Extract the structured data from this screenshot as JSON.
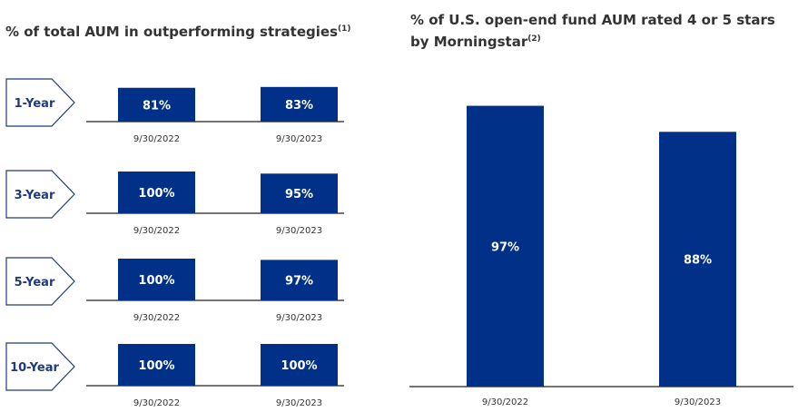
{
  "chart_data": [
    {
      "type": "bar",
      "title": "% of total AUM in outperforming strategies",
      "title_footnote": "(1)",
      "panels": [
        {
          "label": "1-Year",
          "categories": [
            "9/30/2022",
            "9/30/2023"
          ],
          "values": [
            81,
            83
          ],
          "labels": [
            "81%",
            "83%"
          ]
        },
        {
          "label": "3-Year",
          "categories": [
            "9/30/2022",
            "9/30/2023"
          ],
          "values": [
            100,
            95
          ],
          "labels": [
            "100%",
            "95%"
          ]
        },
        {
          "label": "5-Year",
          "categories": [
            "9/30/2022",
            "9/30/2023"
          ],
          "values": [
            100,
            97
          ],
          "labels": [
            "100%",
            "97%"
          ]
        },
        {
          "label": "10-Year",
          "categories": [
            "9/30/2022",
            "9/30/2023"
          ],
          "values": [
            100,
            100
          ],
          "labels": [
            "100%",
            "100%"
          ]
        }
      ],
      "ylim": [
        0,
        100
      ],
      "grid": false
    },
    {
      "type": "bar",
      "title": "% of U.S. open-end fund AUM rated 4 or 5 stars by Morningstar",
      "title_footnote": "(2)",
      "categories": [
        "9/30/2022",
        "9/30/2023"
      ],
      "values": [
        97,
        88
      ],
      "labels": [
        "97%",
        "88%"
      ],
      "ylim": [
        0,
        100
      ],
      "grid": false
    }
  ],
  "colors": {
    "bar": "#003087",
    "label_box": "#1f3a7a",
    "text": "#333333",
    "axis": "#222222"
  }
}
